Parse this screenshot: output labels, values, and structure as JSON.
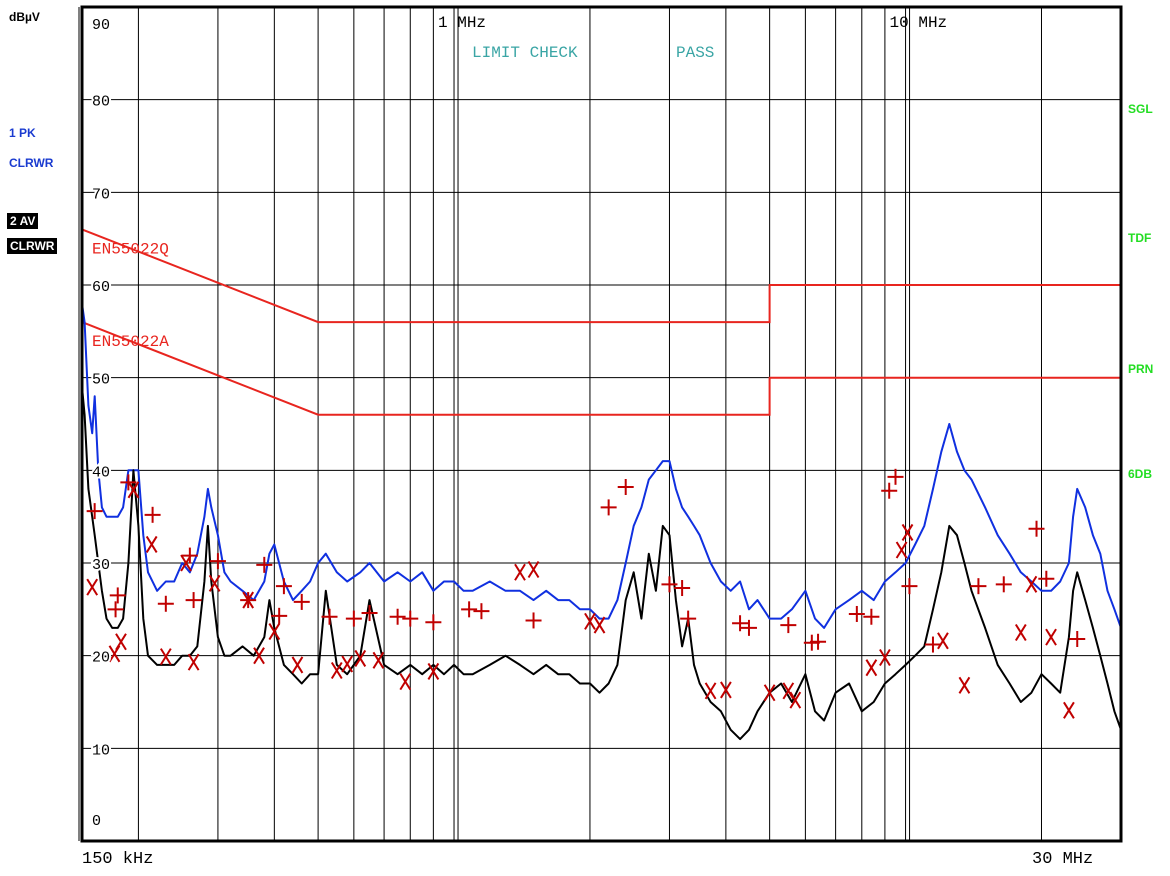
{
  "unit_label": "dBµV",
  "left_panel": {
    "trace1_line1": "1 PK",
    "trace1_line2": "CLRWR",
    "trace2_line1": "2 AV",
    "trace2_line2": "CLRWR"
  },
  "right_panel": [
    "SGL",
    "TDF",
    "PRN",
    "6DB"
  ],
  "colors": {
    "pk_trace": "#1030e0",
    "av_trace": "#000000",
    "limit": "#e8251f",
    "markers": "#c00000",
    "status_text": "#3aa5a5",
    "softkeys": "#22dd22",
    "side_blue": "#1a3bd0"
  },
  "chart_data": {
    "type": "line",
    "x_scale": "log",
    "xlim_mhz": [
      0.15,
      30
    ],
    "ylim": [
      0,
      90
    ],
    "ylabel": "dBµV",
    "y_tick_labels": [
      "0",
      "10",
      "20",
      "30",
      "40",
      "50",
      "60",
      "70",
      "80",
      "90"
    ],
    "x_edge_labels": [
      "150 kHz",
      "30 MHz"
    ],
    "x_top_labels": [
      {
        "text": "1 MHz",
        "mhz": 1
      },
      {
        "text": "10 MHz",
        "mhz": 10
      }
    ],
    "status": {
      "text1": "LIMIT CHECK",
      "text2": "PASS"
    },
    "grid": true,
    "limit_lines": [
      {
        "name": "EN55022Q",
        "points": [
          [
            0.15,
            66
          ],
          [
            0.5,
            56
          ],
          [
            5,
            56
          ],
          [
            5,
            60
          ],
          [
            30,
            60
          ]
        ]
      },
      {
        "name": "EN55022A",
        "points": [
          [
            0.15,
            56
          ],
          [
            0.5,
            46
          ],
          [
            5,
            46
          ],
          [
            5,
            50
          ],
          [
            30,
            50
          ]
        ]
      }
    ],
    "series": [
      {
        "name": "1 PK",
        "points": [
          [
            0.15,
            58
          ],
          [
            0.152,
            56
          ],
          [
            0.155,
            47
          ],
          [
            0.158,
            44
          ],
          [
            0.16,
            48
          ],
          [
            0.163,
            40
          ],
          [
            0.166,
            36
          ],
          [
            0.17,
            35
          ],
          [
            0.175,
            35
          ],
          [
            0.18,
            35
          ],
          [
            0.185,
            36
          ],
          [
            0.19,
            40
          ],
          [
            0.195,
            40
          ],
          [
            0.2,
            40
          ],
          [
            0.205,
            33
          ],
          [
            0.21,
            29
          ],
          [
            0.22,
            27
          ],
          [
            0.23,
            28
          ],
          [
            0.24,
            28
          ],
          [
            0.25,
            30
          ],
          [
            0.26,
            29
          ],
          [
            0.27,
            31
          ],
          [
            0.28,
            35
          ],
          [
            0.285,
            38
          ],
          [
            0.29,
            36
          ],
          [
            0.3,
            33
          ],
          [
            0.31,
            29
          ],
          [
            0.32,
            28
          ],
          [
            0.34,
            27
          ],
          [
            0.36,
            26
          ],
          [
            0.38,
            28
          ],
          [
            0.39,
            31
          ],
          [
            0.4,
            32
          ],
          [
            0.42,
            28
          ],
          [
            0.44,
            26
          ],
          [
            0.46,
            27
          ],
          [
            0.48,
            28
          ],
          [
            0.5,
            30
          ],
          [
            0.52,
            31
          ],
          [
            0.55,
            29
          ],
          [
            0.58,
            28
          ],
          [
            0.62,
            29
          ],
          [
            0.65,
            30
          ],
          [
            0.7,
            28
          ],
          [
            0.75,
            29
          ],
          [
            0.8,
            28
          ],
          [
            0.85,
            29
          ],
          [
            0.9,
            27
          ],
          [
            0.95,
            28
          ],
          [
            1.0,
            28
          ],
          [
            1.05,
            27
          ],
          [
            1.1,
            27
          ],
          [
            1.2,
            28
          ],
          [
            1.3,
            27
          ],
          [
            1.4,
            27
          ],
          [
            1.5,
            26
          ],
          [
            1.6,
            27
          ],
          [
            1.7,
            26
          ],
          [
            1.8,
            26
          ],
          [
            1.9,
            25
          ],
          [
            2.0,
            25
          ],
          [
            2.1,
            24
          ],
          [
            2.2,
            24
          ],
          [
            2.3,
            26
          ],
          [
            2.4,
            30
          ],
          [
            2.5,
            34
          ],
          [
            2.6,
            36
          ],
          [
            2.7,
            39
          ],
          [
            2.8,
            40
          ],
          [
            2.9,
            41
          ],
          [
            3.0,
            41
          ],
          [
            3.1,
            38
          ],
          [
            3.2,
            36
          ],
          [
            3.3,
            35
          ],
          [
            3.4,
            34
          ],
          [
            3.5,
            33
          ],
          [
            3.7,
            30
          ],
          [
            3.9,
            28
          ],
          [
            4.1,
            27
          ],
          [
            4.3,
            28
          ],
          [
            4.5,
            25
          ],
          [
            4.7,
            26
          ],
          [
            5.0,
            24
          ],
          [
            5.3,
            24
          ],
          [
            5.6,
            25
          ],
          [
            6.0,
            27
          ],
          [
            6.3,
            24
          ],
          [
            6.6,
            23
          ],
          [
            7.0,
            25
          ],
          [
            7.5,
            26
          ],
          [
            8.0,
            27
          ],
          [
            8.5,
            26
          ],
          [
            9.0,
            28
          ],
          [
            9.5,
            29
          ],
          [
            10,
            30
          ],
          [
            10.5,
            32
          ],
          [
            11,
            34
          ],
          [
            11.5,
            38
          ],
          [
            12,
            42
          ],
          [
            12.5,
            45
          ],
          [
            13,
            42
          ],
          [
            13.5,
            40
          ],
          [
            14,
            39
          ],
          [
            15,
            36
          ],
          [
            16,
            33
          ],
          [
            17,
            31
          ],
          [
            18,
            29
          ],
          [
            19,
            28
          ],
          [
            20,
            27
          ],
          [
            21,
            27
          ],
          [
            22,
            28
          ],
          [
            23,
            30
          ],
          [
            23.5,
            35
          ],
          [
            24,
            38
          ],
          [
            25,
            36
          ],
          [
            26,
            33
          ],
          [
            27,
            31
          ],
          [
            28,
            27
          ],
          [
            29,
            25
          ],
          [
            30,
            23
          ]
        ]
      },
      {
        "name": "2 AV",
        "points": [
          [
            0.15,
            49
          ],
          [
            0.152,
            46
          ],
          [
            0.155,
            38
          ],
          [
            0.158,
            35
          ],
          [
            0.16,
            33
          ],
          [
            0.163,
            30
          ],
          [
            0.166,
            27
          ],
          [
            0.17,
            24
          ],
          [
            0.175,
            23
          ],
          [
            0.18,
            23
          ],
          [
            0.185,
            24
          ],
          [
            0.19,
            30
          ],
          [
            0.195,
            40
          ],
          [
            0.2,
            34
          ],
          [
            0.205,
            24
          ],
          [
            0.21,
            20
          ],
          [
            0.22,
            19
          ],
          [
            0.23,
            19
          ],
          [
            0.24,
            19
          ],
          [
            0.25,
            20
          ],
          [
            0.26,
            20
          ],
          [
            0.27,
            21
          ],
          [
            0.28,
            28
          ],
          [
            0.285,
            34
          ],
          [
            0.29,
            28
          ],
          [
            0.3,
            22
          ],
          [
            0.31,
            20
          ],
          [
            0.32,
            20
          ],
          [
            0.34,
            21
          ],
          [
            0.36,
            20
          ],
          [
            0.38,
            22
          ],
          [
            0.39,
            26
          ],
          [
            0.4,
            23
          ],
          [
            0.42,
            19
          ],
          [
            0.44,
            18
          ],
          [
            0.46,
            17
          ],
          [
            0.48,
            18
          ],
          [
            0.5,
            18
          ],
          [
            0.52,
            27
          ],
          [
            0.55,
            19
          ],
          [
            0.58,
            18
          ],
          [
            0.62,
            20
          ],
          [
            0.65,
            26
          ],
          [
            0.7,
            19
          ],
          [
            0.75,
            18
          ],
          [
            0.8,
            19
          ],
          [
            0.85,
            18
          ],
          [
            0.9,
            19
          ],
          [
            0.95,
            18
          ],
          [
            1.0,
            19
          ],
          [
            1.05,
            18
          ],
          [
            1.1,
            18
          ],
          [
            1.2,
            19
          ],
          [
            1.3,
            20
          ],
          [
            1.4,
            19
          ],
          [
            1.5,
            18
          ],
          [
            1.6,
            19
          ],
          [
            1.7,
            18
          ],
          [
            1.8,
            18
          ],
          [
            1.9,
            17
          ],
          [
            2.0,
            17
          ],
          [
            2.1,
            16
          ],
          [
            2.2,
            17
          ],
          [
            2.3,
            19
          ],
          [
            2.4,
            26
          ],
          [
            2.5,
            29
          ],
          [
            2.6,
            24
          ],
          [
            2.7,
            31
          ],
          [
            2.8,
            27
          ],
          [
            2.9,
            34
          ],
          [
            3.0,
            33
          ],
          [
            3.1,
            26
          ],
          [
            3.2,
            21
          ],
          [
            3.3,
            24
          ],
          [
            3.4,
            19
          ],
          [
            3.5,
            17
          ],
          [
            3.7,
            15
          ],
          [
            3.9,
            14
          ],
          [
            4.1,
            12
          ],
          [
            4.3,
            11
          ],
          [
            4.5,
            12
          ],
          [
            4.7,
            14
          ],
          [
            5.0,
            16
          ],
          [
            5.3,
            17
          ],
          [
            5.6,
            15
          ],
          [
            6.0,
            18
          ],
          [
            6.3,
            14
          ],
          [
            6.6,
            13
          ],
          [
            7.0,
            16
          ],
          [
            7.5,
            17
          ],
          [
            8.0,
            14
          ],
          [
            8.5,
            15
          ],
          [
            9.0,
            17
          ],
          [
            9.5,
            18
          ],
          [
            10,
            19
          ],
          [
            10.5,
            20
          ],
          [
            11,
            21
          ],
          [
            11.5,
            25
          ],
          [
            12,
            29
          ],
          [
            12.5,
            34
          ],
          [
            13,
            33
          ],
          [
            13.5,
            30
          ],
          [
            14,
            27
          ],
          [
            15,
            23
          ],
          [
            16,
            19
          ],
          [
            17,
            17
          ],
          [
            18,
            15
          ],
          [
            19,
            16
          ],
          [
            20,
            18
          ],
          [
            21,
            17
          ],
          [
            22,
            16
          ],
          [
            23,
            22
          ],
          [
            23.5,
            27
          ],
          [
            24,
            29
          ],
          [
            25,
            26
          ],
          [
            26,
            23
          ],
          [
            27,
            20
          ],
          [
            28,
            17
          ],
          [
            29,
            14
          ],
          [
            30,
            12
          ]
        ]
      }
    ],
    "markers_plus": [
      [
        0.16,
        35.6
      ],
      [
        0.19,
        38.7
      ],
      [
        0.178,
        25
      ],
      [
        0.18,
        26.5
      ],
      [
        0.215,
        35.2
      ],
      [
        0.23,
        25.6
      ],
      [
        0.26,
        30.8
      ],
      [
        0.265,
        26
      ],
      [
        0.3,
        30.2
      ],
      [
        0.35,
        26
      ],
      [
        0.38,
        29.8
      ],
      [
        0.41,
        24.3
      ],
      [
        0.42,
        27.5
      ],
      [
        0.46,
        25.8
      ],
      [
        0.53,
        24.2
      ],
      [
        0.6,
        24
      ],
      [
        0.65,
        24.6
      ],
      [
        0.75,
        24.2
      ],
      [
        0.8,
        24
      ],
      [
        0.9,
        23.6
      ],
      [
        1.08,
        25
      ],
      [
        1.15,
        24.8
      ],
      [
        1.5,
        23.8
      ],
      [
        2.2,
        36
      ],
      [
        2.4,
        38.2
      ],
      [
        3.0,
        27.7
      ],
      [
        3.2,
        27.3
      ],
      [
        3.3,
        24
      ],
      [
        4.3,
        23.5
      ],
      [
        4.5,
        23
      ],
      [
        5.5,
        23.3
      ],
      [
        6.2,
        21.4
      ],
      [
        6.4,
        21.5
      ],
      [
        7.8,
        24.5
      ],
      [
        8.4,
        24.2
      ],
      [
        9.2,
        37.8
      ],
      [
        9.5,
        39.3
      ],
      [
        10.2,
        27.5
      ],
      [
        11.5,
        21.2
      ],
      [
        14.5,
        27.5
      ],
      [
        16.5,
        27.7
      ],
      [
        19.5,
        33.7
      ],
      [
        20.5,
        28.3
      ],
      [
        24,
        21.8
      ]
    ],
    "markers_x": [
      [
        0.158,
        27.4
      ],
      [
        0.177,
        20.2
      ],
      [
        0.183,
        21.5
      ],
      [
        0.195,
        37.9
      ],
      [
        0.214,
        32
      ],
      [
        0.23,
        19.9
      ],
      [
        0.255,
        30
      ],
      [
        0.265,
        19.3
      ],
      [
        0.295,
        27.8
      ],
      [
        0.35,
        26
      ],
      [
        0.37,
        20
      ],
      [
        0.4,
        22.6
      ],
      [
        0.45,
        19
      ],
      [
        0.55,
        18.4
      ],
      [
        0.58,
        19.1
      ],
      [
        0.62,
        19.7
      ],
      [
        0.68,
        19.5
      ],
      [
        0.78,
        17.2
      ],
      [
        0.9,
        18.3
      ],
      [
        1.4,
        29
      ],
      [
        1.5,
        29.3
      ],
      [
        2.0,
        23.7
      ],
      [
        2.1,
        23.3
      ],
      [
        3.7,
        16.2
      ],
      [
        4.0,
        16.3
      ],
      [
        5.0,
        16
      ],
      [
        5.5,
        16.2
      ],
      [
        5.7,
        15.2
      ],
      [
        8.4,
        18.7
      ],
      [
        9.0,
        19.8
      ],
      [
        9.8,
        31.4
      ],
      [
        10.1,
        33.3
      ],
      [
        12.1,
        21.6
      ],
      [
        13.5,
        16.8
      ],
      [
        18,
        22.5
      ],
      [
        19,
        27.7
      ],
      [
        21,
        22
      ],
      [
        23,
        14.1
      ]
    ]
  }
}
